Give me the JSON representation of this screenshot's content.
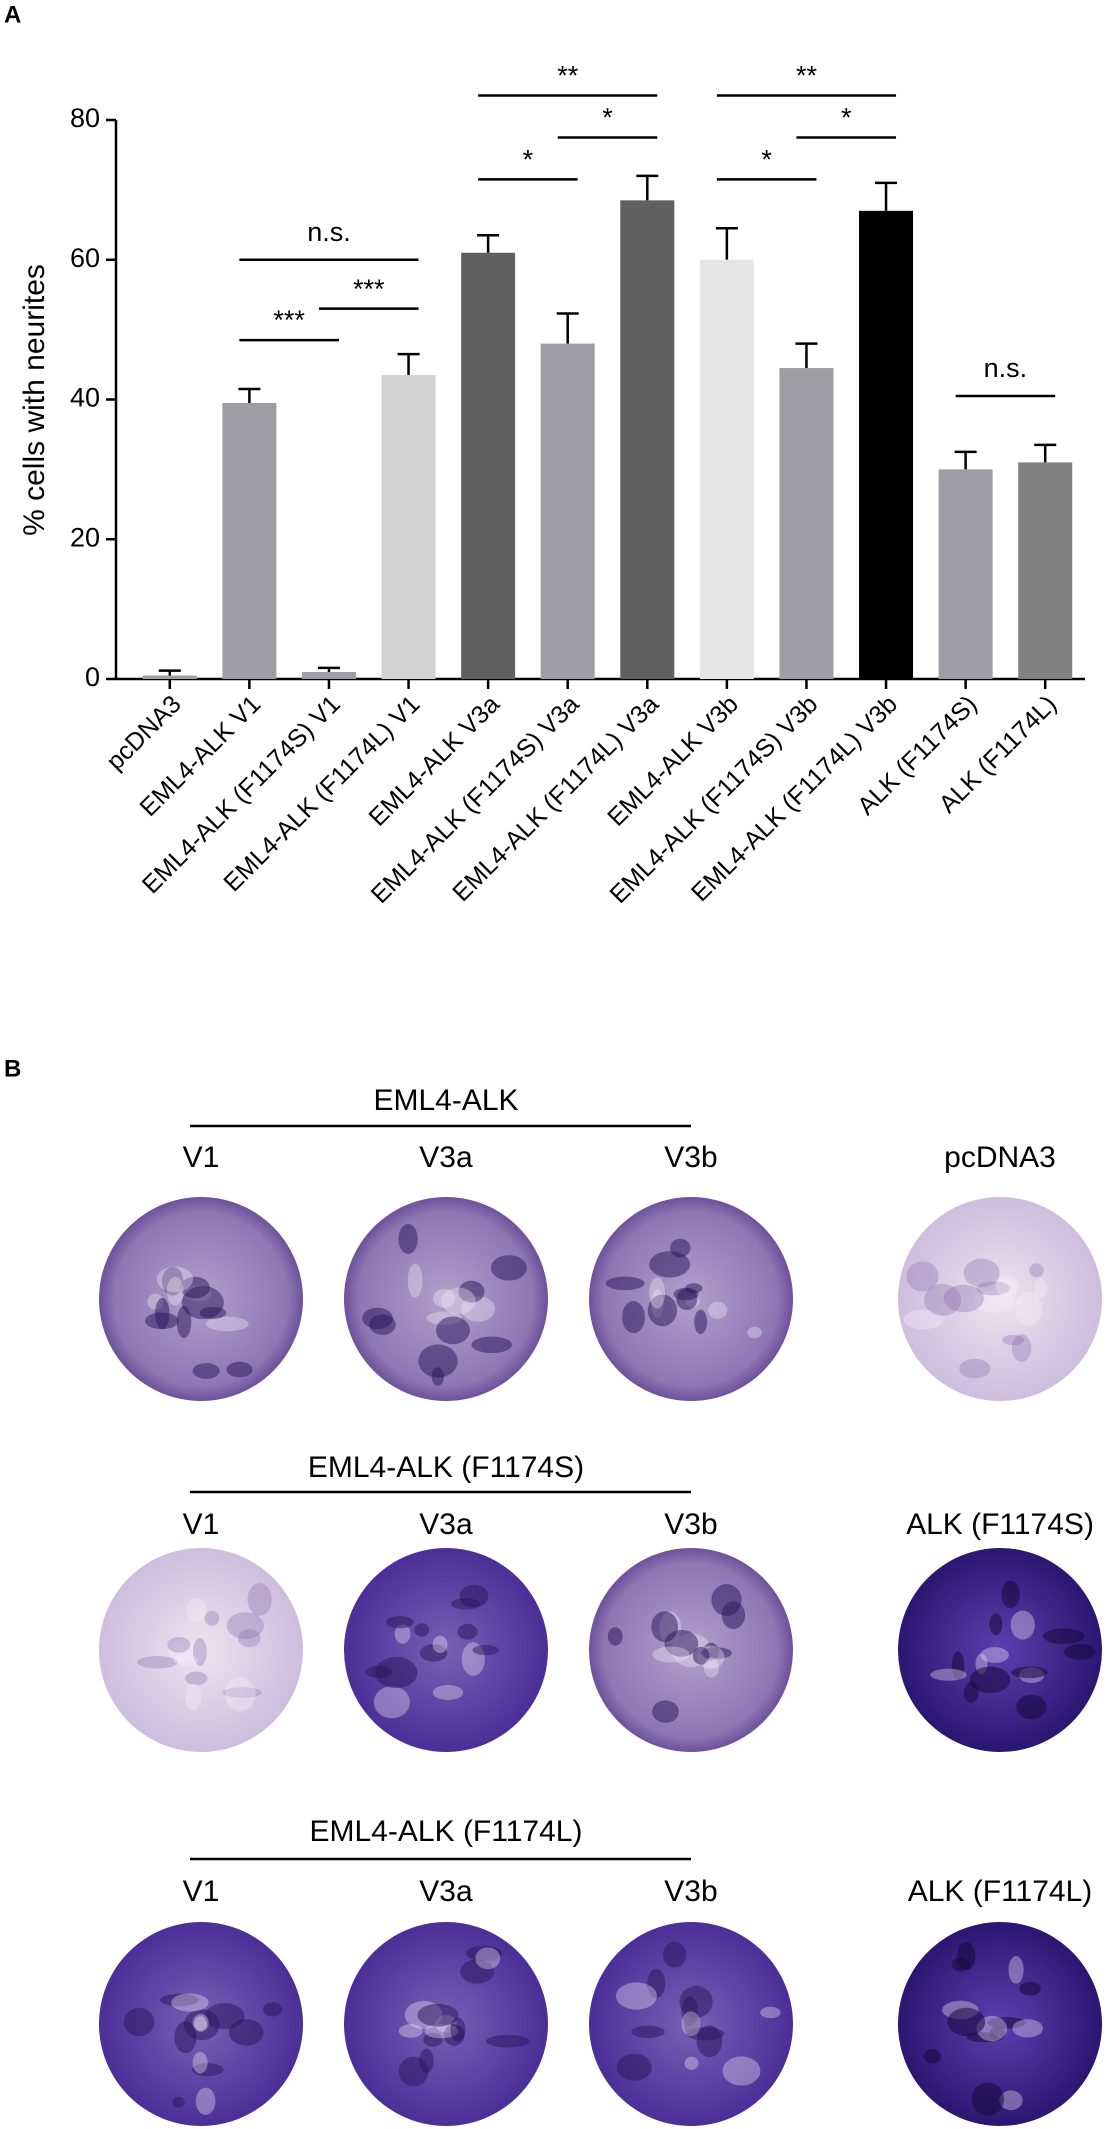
{
  "chart_data": {
    "type": "bar",
    "panel_label": "A",
    "y_label": "% cells with neurites",
    "categories": [
      "pcDNA3",
      "EML4-ALK V1",
      "EML4-ALK (F1174S) V1",
      "EML4-ALK (F1174L) V1",
      "EML4-ALK V3a",
      "EML4-ALK (F1174S) V3a",
      "EML4-ALK (F1174L) V3a",
      "EML4-ALK V3b",
      "EML4-ALK (F1174S) V3b",
      "EML4-ALK (F1174L) V3b",
      "ALK (F1174S)",
      "ALK (F1174L)"
    ],
    "values": [
      0.5,
      39.5,
      1,
      43.5,
      61,
      48,
      68.5,
      60,
      44.5,
      67,
      30,
      31
    ],
    "errors": [
      0.7,
      2,
      0.6,
      3,
      2.5,
      4.3,
      3.5,
      4.5,
      3.5,
      4,
      2.5,
      2.5
    ],
    "colors": [
      "#9d9da3",
      "#9d9da3",
      "#9d9da3",
      "#d2d2d2",
      "#606060",
      "#9d9da3",
      "#606060",
      "#e6e6e6",
      "#9d9da3",
      "#000000",
      "#9d9da3",
      "#808080"
    ],
    "ylim": [
      0,
      80
    ],
    "yticks": [
      0,
      20,
      40,
      60,
      80
    ],
    "annotations": [
      "***",
      "***",
      "n.s.",
      "*",
      "*",
      "**",
      "*",
      "*",
      "**",
      "n.s."
    ]
  },
  "panel_b": {
    "panel_label": "B",
    "rows": [
      {
        "title": "EML4-ALK",
        "columns": [
          "V1",
          "V3a",
          "V3b"
        ],
        "control": "pcDNA3"
      },
      {
        "title": "EML4-ALK (F1174S)",
        "columns": [
          "V1",
          "V3a",
          "V3b"
        ],
        "control": "ALK (F1174S)"
      },
      {
        "title": "EML4-ALK (F1174L)",
        "columns": [
          "V1",
          "V3a",
          "V3b"
        ],
        "control": "ALK (F1174L)"
      }
    ]
  }
}
